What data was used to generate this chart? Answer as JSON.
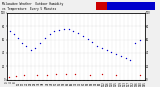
{
  "title_text": "Milwaukee Weather  Outdoor Humidity",
  "title_text2": "vs Temperature  Every 5 Minutes",
  "background_color": "#f0f0f0",
  "plot_bg_color": "#ffffff",
  "grid_color": "#aaaaaa",
  "humidity_color": "#0000cc",
  "temp_color": "#cc0000",
  "legend_temp_color": "#cc0000",
  "legend_humidity_color": "#0000cc",
  "title_color": "#000000",
  "humidity_points_x": [
    3,
    8,
    12,
    16,
    20,
    25,
    30,
    35,
    40,
    45,
    50,
    55,
    60,
    65,
    70,
    75,
    80,
    85,
    90,
    95,
    100,
    105,
    110,
    115,
    120,
    125,
    130,
    135,
    140
  ],
  "humidity_points_y": [
    72,
    68,
    62,
    55,
    50,
    45,
    48,
    55,
    62,
    68,
    72,
    74,
    76,
    75,
    73,
    70,
    66,
    61,
    56,
    51,
    47,
    44,
    41,
    38,
    35,
    33,
    30,
    55,
    60
  ],
  "temp_points_x": [
    2,
    10,
    18,
    32,
    42,
    52,
    62,
    72,
    88,
    100,
    115,
    140
  ],
  "temp_points_y": [
    5,
    6,
    7,
    8,
    8,
    9,
    9,
    9,
    8,
    9,
    8,
    7
  ],
  "xlim": [
    0,
    145
  ],
  "ylim": [
    0,
    100
  ],
  "figsize": [
    1.6,
    0.87
  ],
  "dpi": 100,
  "title_fontsize": 2.2,
  "tick_fontsize": 1.8
}
